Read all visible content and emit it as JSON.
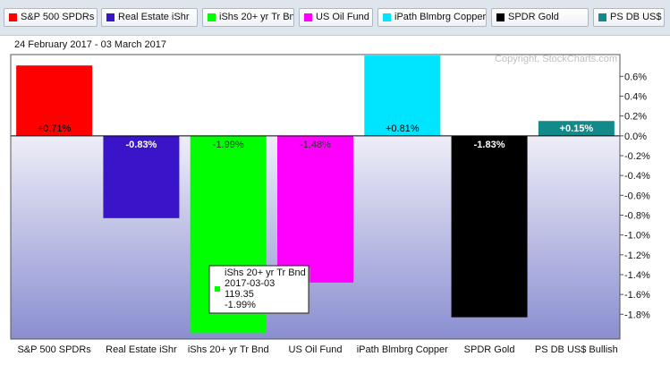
{
  "chart_data": {
    "type": "bar",
    "date_range": "24 February 2017 - 03 March 2017",
    "copyright": "Copyright, StockCharts.com",
    "categories": [
      "S&P 500 SPDRs",
      "Real Estate iShr",
      "iShs 20+ yr Tr Bnd",
      "US Oil Fund",
      "iPath Blmbrg Copper",
      "SPDR Gold",
      "PS DB US$ Bullish"
    ],
    "values": [
      0.71,
      -0.83,
      -1.99,
      -1.48,
      0.81,
      -1.83,
      0.15
    ],
    "value_labels": [
      "+0.71%",
      "-0.83%",
      "-1.99%",
      "-1.48%",
      "+0.81%",
      "-1.83%",
      "+0.15%"
    ],
    "colors": [
      "#ff0000",
      "#3a14c8",
      "#00ff00",
      "#ff00ff",
      "#00e5ff",
      "#000000",
      "#128a8a"
    ],
    "label_colors": [
      "#000000",
      "#ffffff",
      "#333333",
      "#333333",
      "#000000",
      "#ffffff",
      "#ffffff"
    ],
    "y_ticks": [
      0.6,
      0.4,
      0.2,
      0.0,
      -0.2,
      -0.4,
      -0.6,
      -0.8,
      -1.0,
      -1.2,
      -1.4,
      -1.6,
      -1.8
    ],
    "y_tick_labels": [
      "0.6%",
      "0.4%",
      "0.2%",
      "0.0%",
      "-0.2%",
      "-0.4%",
      "-0.6%",
      "-0.8%",
      "-1.0%",
      "-1.2%",
      "-1.4%",
      "-1.6%",
      "-1.8%"
    ],
    "ylim": [
      -2.05,
      0.82
    ],
    "grid": false,
    "legend_placement": "top",
    "tooltip": {
      "series_index": 2,
      "lines": [
        "iShs 20+ yr Tr Bnd",
        "2017-03-03",
        "119.35",
        "-1.99%"
      ]
    }
  }
}
